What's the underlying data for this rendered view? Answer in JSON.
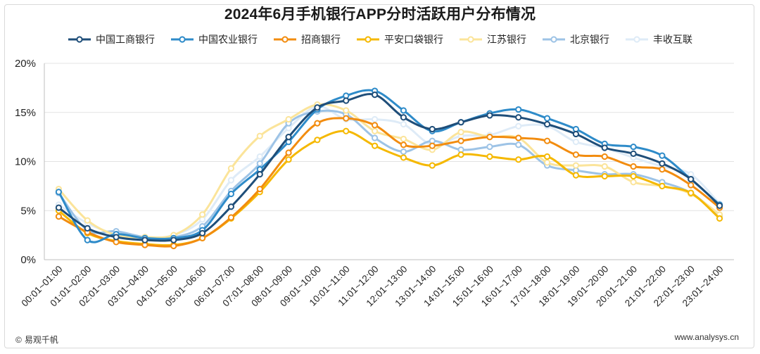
{
  "chart_data": {
    "type": "line",
    "title": "2024年6月手机银行APP分时活跃用户分布情况",
    "categories": [
      "00:01~01:00",
      "01:01~02:00",
      "02:01~03:00",
      "03:01~04:00",
      "04:01~05:00",
      "05:01~06:00",
      "06:01~07:00",
      "07:01~08:00",
      "08:01~09:00",
      "09:01~10:00",
      "10:01~11:00",
      "11:01~12:00",
      "12:01~13:00",
      "13:01~14:00",
      "14:01~15:00",
      "15:01~16:00",
      "16:01~17:00",
      "17:01~18:00",
      "18:01~19:00",
      "19:01~20:00",
      "20:01~21:00",
      "21:01~22:00",
      "22:01~23:00",
      "23:01~24:00"
    ],
    "ylim": [
      0,
      20
    ],
    "yticks": [
      "0%",
      "5%",
      "10%",
      "15%",
      "20%"
    ],
    "legend_position": "top",
    "grid": true,
    "series": [
      {
        "name": "中国工商银行",
        "color": "#1f4e79",
        "values": [
          5.3,
          3.2,
          2.3,
          2.0,
          2.0,
          2.7,
          5.4,
          8.7,
          12.5,
          15.5,
          16.2,
          16.8,
          14.5,
          13.3,
          14.0,
          14.7,
          14.5,
          13.8,
          12.8,
          11.4,
          10.8,
          9.8,
          8.2,
          5.5
        ]
      },
      {
        "name": "中国农业银行",
        "color": "#2e8bc9",
        "values": [
          6.9,
          2.0,
          2.6,
          2.2,
          2.2,
          3.0,
          6.7,
          9.2,
          12.0,
          15.3,
          16.7,
          17.2,
          15.2,
          13.1,
          14.0,
          14.9,
          15.3,
          14.4,
          13.3,
          11.8,
          11.5,
          10.6,
          8.2,
          5.6
        ]
      },
      {
        "name": "招商银行",
        "color": "#f28c0f",
        "values": [
          4.4,
          2.8,
          1.8,
          1.5,
          1.4,
          2.2,
          4.3,
          7.2,
          10.9,
          13.9,
          14.4,
          13.7,
          11.7,
          11.6,
          12.1,
          12.5,
          12.4,
          12.1,
          10.7,
          10.5,
          9.5,
          9.2,
          7.6,
          5.3
        ]
      },
      {
        "name": "平安口袋银行",
        "color": "#f5b800",
        "values": [
          5.0,
          2.7,
          1.9,
          1.6,
          1.5,
          2.2,
          4.2,
          6.9,
          10.2,
          12.2,
          13.1,
          11.6,
          10.4,
          9.6,
          10.7,
          10.5,
          10.2,
          10.5,
          8.6,
          8.5,
          8.5,
          7.5,
          6.8,
          4.2
        ]
      },
      {
        "name": "江苏银行",
        "color": "#fbe49a",
        "values": [
          7.2,
          4.0,
          2.5,
          2.3,
          2.5,
          4.6,
          9.3,
          12.6,
          14.3,
          15.8,
          15.2,
          13.1,
          12.3,
          11.2,
          13.0,
          12.5,
          12.4,
          9.9,
          9.6,
          9.5,
          7.9,
          7.5,
          6.7,
          4.6
        ]
      },
      {
        "name": "北京银行",
        "color": "#9dc3e6",
        "values": [
          6.8,
          3.0,
          2.9,
          2.3,
          2.3,
          3.4,
          7.0,
          9.8,
          13.9,
          15.1,
          14.8,
          12.4,
          11.0,
          12.1,
          11.2,
          11.5,
          11.7,
          9.6,
          9.1,
          8.7,
          8.7,
          7.9,
          6.8,
          4.5
        ]
      },
      {
        "name": "丰收互联",
        "color": "#deebf7",
        "values": [
          5.6,
          3.7,
          2.6,
          2.2,
          2.5,
          4.1,
          8.1,
          10.5,
          13.4,
          15.6,
          14.3,
          14.3,
          13.8,
          11.7,
          12.6,
          12.7,
          13.6,
          13.6,
          12.0,
          11.4,
          10.4,
          9.5,
          8.7,
          5.7
        ]
      }
    ]
  },
  "footer": {
    "source_label": "易观千帆",
    "website": "www.analysys.cn"
  }
}
